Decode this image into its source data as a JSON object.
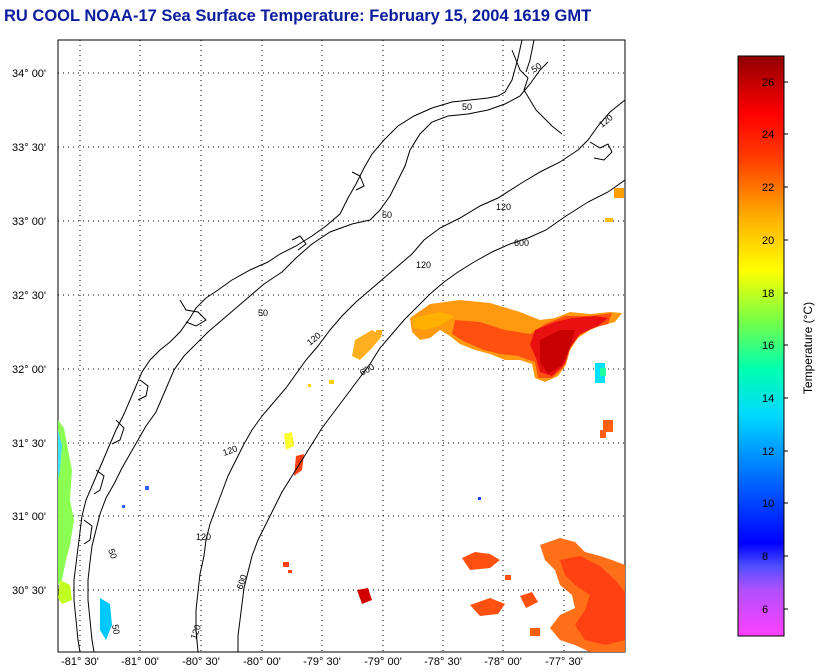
{
  "title": "RU COOL  NOAA-17  Sea Surface Temperature:  February 15, 2004 1619 GMT",
  "map": {
    "lat_ticks": [
      "34° 00'",
      "33° 30'",
      "33° 00'",
      "32° 30'",
      "32° 00'",
      "31° 30'",
      "31° 00'",
      "30° 30'"
    ],
    "lon_ticks": [
      "-81° 30'",
      "-81° 00'",
      "-80° 30'",
      "-80° 00'",
      "-79° 30'",
      "-79° 00'",
      "-78° 30'",
      "-78° 00'",
      "-77° 30'"
    ],
    "isobath_labels": {
      "i50a": "50",
      "i50b": "50",
      "i50c": "50",
      "i50d": "50",
      "i50e": "50",
      "i50f": "50",
      "i120a": "120",
      "i120b": "120",
      "i120c": "120",
      "i120d": "120",
      "i120e": "120",
      "i120f": "120",
      "i120g": "120",
      "i600a": "600",
      "i600b": "600",
      "i600c": "600"
    },
    "colors": {
      "land_line": "#000000",
      "grid_dot": "#000000"
    }
  },
  "colorbar": {
    "title": "Temperature (°C)",
    "ticks": [
      "26",
      "24",
      "22",
      "20",
      "18",
      "16",
      "14",
      "12",
      "10",
      "8",
      "6"
    ],
    "range_min": 5,
    "range_max": 27,
    "colors": [
      "#ff00ff",
      "#8000ff",
      "#0000ff",
      "#0080ff",
      "#00ffff",
      "#00ff80",
      "#80ff00",
      "#ffff00",
      "#ffa000",
      "#ff0000",
      "#a00000"
    ]
  }
}
